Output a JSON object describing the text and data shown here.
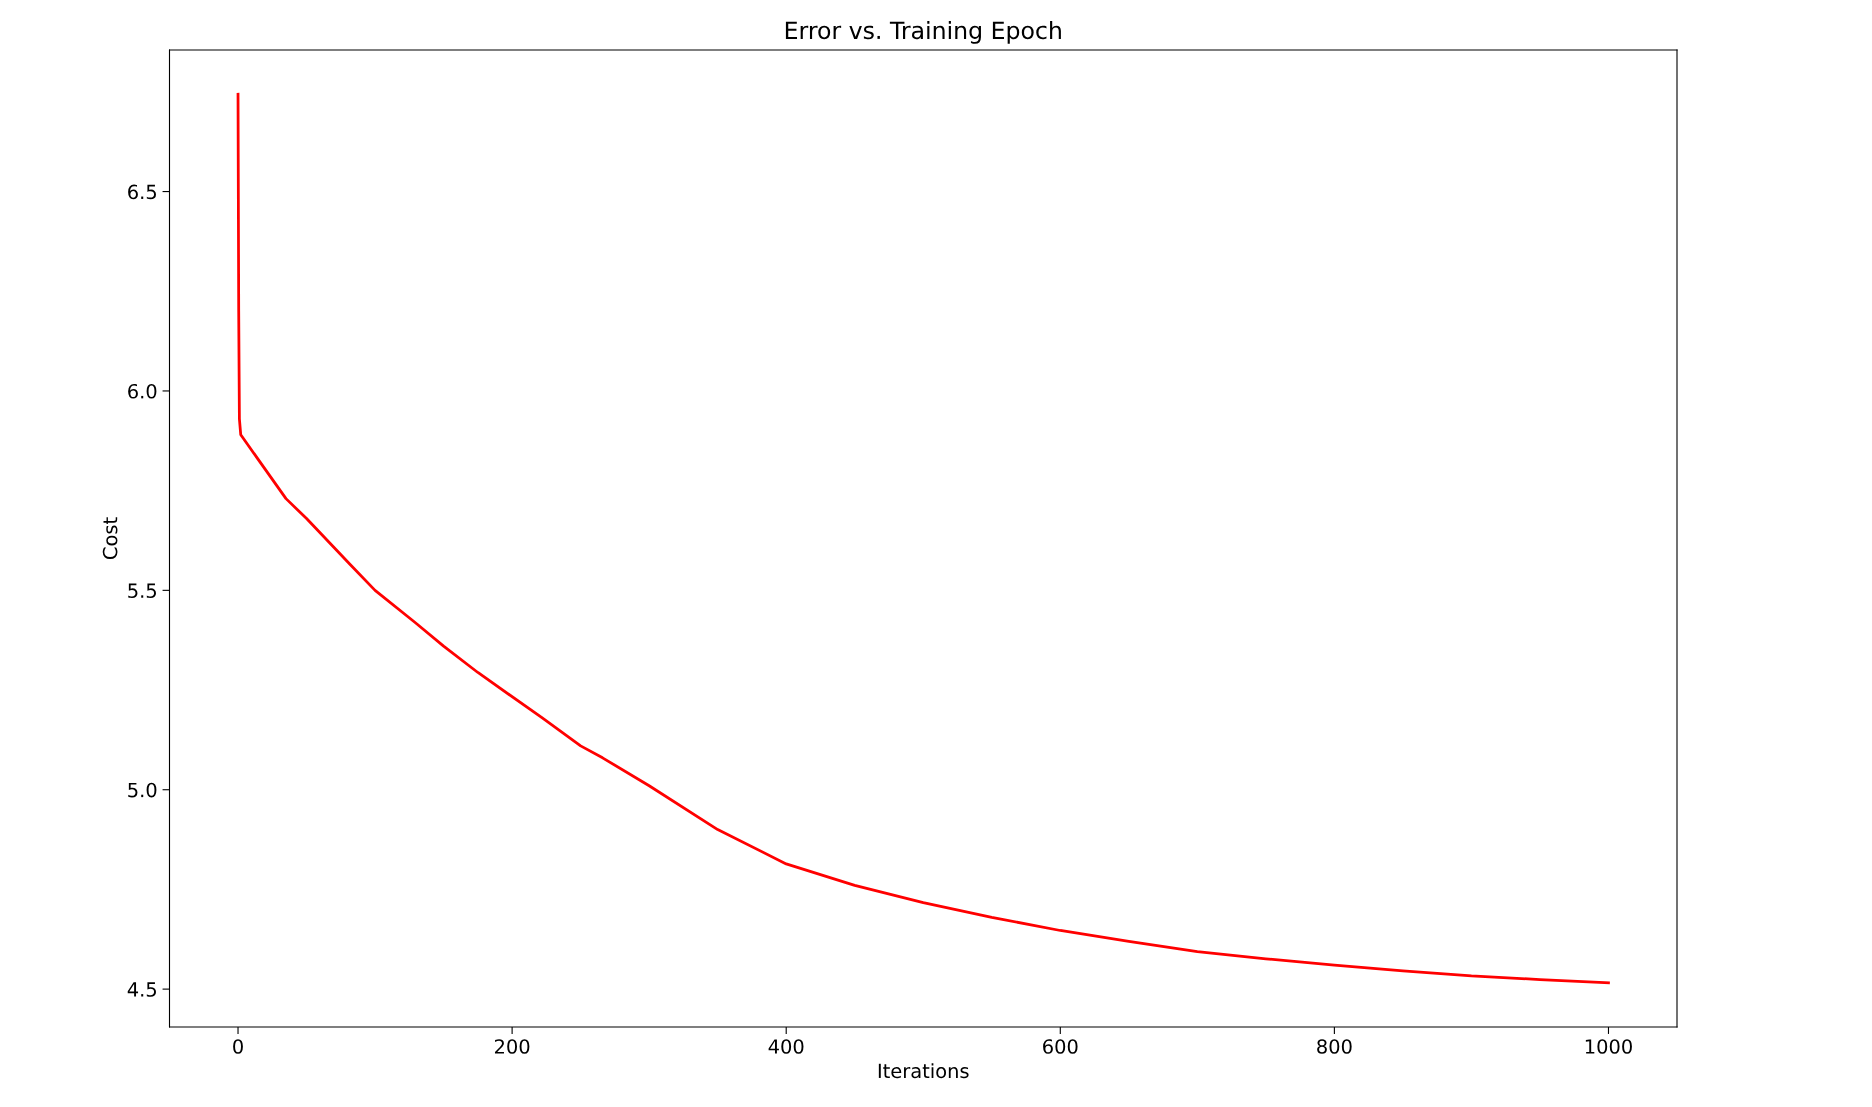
{
  "chart_data": {
    "type": "line",
    "title": "Error vs. Training Epoch",
    "xlabel": "Iterations",
    "ylabel": "Cost",
    "series": [
      {
        "color": "#ff0000",
        "x": [
          0,
          0.5,
          1,
          2,
          35,
          50,
          82,
          100,
          129,
          150,
          175,
          222,
          250,
          266,
          300,
          350,
          400,
          450,
          500,
          550,
          600,
          650,
          700,
          750,
          800,
          850,
          900,
          950,
          1000
        ],
        "values": [
          6.744,
          6.2,
          5.93,
          5.89,
          5.73,
          5.68,
          5.564,
          5.5,
          5.42,
          5.36,
          5.294,
          5.18,
          5.11,
          5.08,
          5.01,
          4.9,
          4.814,
          4.76,
          4.717,
          4.68,
          4.647,
          4.62,
          4.594,
          4.576,
          4.56,
          4.546,
          4.533,
          4.524,
          4.516
        ]
      }
    ],
    "xlim": [
      -50,
      1050
    ],
    "ylim": [
      4.405,
      6.855
    ],
    "xticks": [
      0,
      200,
      400,
      600,
      800,
      1000
    ],
    "yticks": [
      4.5,
      {
        "value": 5,
        "label": "5.0"
      },
      5.5,
      {
        "value": 6,
        "label": "6.0"
      },
      6.5
    ],
    "grid": false,
    "marker": "none",
    "line_style": "solid"
  }
}
